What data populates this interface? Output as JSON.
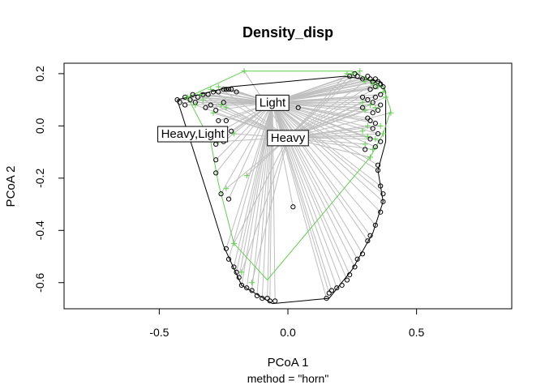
{
  "chart_data": {
    "type": "scatter",
    "title": "Density_disp",
    "xlabel": "PCoA 1",
    "ylabel": "PCoA 2",
    "sub": "method = \"horn\"",
    "xlim": [
      -0.87,
      0.87
    ],
    "ylim": [
      -0.7,
      0.24
    ],
    "xticks": [
      -0.5,
      0.0,
      0.5
    ],
    "yticks": [
      -0.6,
      -0.4,
      -0.2,
      0.0,
      0.2
    ],
    "xtick_labels": [
      "-0.5",
      "0.0",
      "0.5"
    ],
    "ytick_labels": [
      "-0.6",
      "-0.4",
      "-0.2",
      "0.0",
      "0.2"
    ],
    "grid": false,
    "colors": {
      "group_light": "#000000",
      "group_heavy": "#61D04F",
      "segment": "#BEBEBE",
      "hull_light": "#000000",
      "hull_heavy": "#61D04F"
    },
    "centroids": [
      {
        "label": "Light",
        "x": -0.06,
        "y": 0.09
      },
      {
        "label": "Heavy,Light",
        "x": -0.37,
        "y": -0.03
      },
      {
        "label": "Heavy",
        "x": 0.0,
        "y": -0.045
      }
    ],
    "series": [
      {
        "marker": "circle",
        "segment_to": 0,
        "points": [
          [
            -0.43,
            0.1
          ],
          [
            -0.42,
            0.09
          ],
          [
            -0.4,
            0.11
          ],
          [
            -0.38,
            0.1
          ],
          [
            -0.37,
            0.12
          ],
          [
            -0.35,
            0.11
          ],
          [
            -0.33,
            0.12
          ],
          [
            -0.31,
            0.12
          ],
          [
            -0.29,
            0.13
          ],
          [
            -0.27,
            0.13
          ],
          [
            -0.25,
            0.14
          ],
          [
            -0.24,
            0.14
          ],
          [
            -0.23,
            0.14
          ],
          [
            -0.22,
            0.14
          ],
          [
            -0.2,
            0.13
          ],
          [
            -0.4,
            0.08
          ],
          [
            -0.36,
            0.09
          ],
          [
            -0.32,
            0.07
          ],
          [
            -0.3,
            0.08
          ],
          [
            -0.28,
            0.06
          ],
          [
            -0.25,
            0.09
          ],
          [
            -0.27,
            0.02
          ],
          [
            -0.24,
            0.02
          ],
          [
            -0.26,
            -0.02
          ],
          [
            -0.22,
            -0.02
          ],
          [
            -0.28,
            -0.07
          ],
          [
            -0.25,
            -0.06
          ],
          [
            -0.28,
            -0.13
          ],
          [
            -0.28,
            -0.18
          ],
          [
            -0.26,
            -0.26
          ],
          [
            -0.23,
            -0.28
          ],
          [
            0.24,
            0.19
          ],
          [
            0.26,
            0.2
          ],
          [
            0.27,
            0.19
          ],
          [
            0.29,
            0.18
          ],
          [
            0.31,
            0.19
          ],
          [
            0.32,
            0.18
          ],
          [
            0.33,
            0.17
          ],
          [
            0.34,
            0.18
          ],
          [
            0.35,
            0.17
          ],
          [
            0.36,
            0.16
          ],
          [
            0.37,
            0.15
          ],
          [
            0.34,
            0.15
          ],
          [
            0.32,
            0.14
          ],
          [
            0.36,
            0.12
          ],
          [
            0.34,
            0.11
          ],
          [
            0.33,
            0.09
          ],
          [
            0.31,
            0.1
          ],
          [
            0.29,
            0.11
          ],
          [
            0.36,
            0.08
          ],
          [
            0.35,
            0.06
          ],
          [
            0.33,
            0.05
          ],
          [
            0.31,
            0.03
          ],
          [
            0.34,
            0.01
          ],
          [
            0.33,
            -0.01
          ],
          [
            0.35,
            -0.03
          ],
          [
            0.32,
            -0.05
          ],
          [
            0.36,
            -0.06
          ],
          [
            0.34,
            -0.08
          ],
          [
            0.3,
            -0.09
          ],
          [
            0.35,
            -0.15
          ],
          [
            0.29,
            0.07
          ],
          [
            0.32,
            0.02
          ],
          [
            0.04,
            0.07
          ],
          [
            0.02,
            -0.31
          ],
          [
            -0.24,
            -0.47
          ],
          [
            -0.23,
            -0.51
          ],
          [
            -0.21,
            -0.54
          ],
          [
            -0.2,
            -0.56
          ],
          [
            -0.19,
            -0.58
          ],
          [
            -0.18,
            -0.61
          ],
          [
            -0.16,
            -0.62
          ],
          [
            -0.14,
            -0.63
          ],
          [
            -0.12,
            -0.65
          ],
          [
            -0.1,
            -0.66
          ],
          [
            -0.08,
            -0.66
          ],
          [
            -0.07,
            -0.67
          ],
          [
            -0.05,
            -0.67
          ],
          [
            0.15,
            -0.66
          ],
          [
            0.16,
            -0.64
          ],
          [
            0.17,
            -0.63
          ],
          [
            0.19,
            -0.62
          ],
          [
            0.21,
            -0.61
          ],
          [
            0.23,
            -0.59
          ],
          [
            0.24,
            -0.57
          ],
          [
            0.26,
            -0.54
          ],
          [
            0.27,
            -0.51
          ],
          [
            0.29,
            -0.49
          ],
          [
            0.31,
            -0.44
          ],
          [
            0.32,
            -0.42
          ],
          [
            0.34,
            -0.38
          ],
          [
            0.36,
            -0.33
          ],
          [
            0.37,
            -0.29
          ],
          [
            0.37,
            -0.26
          ],
          [
            0.36,
            -0.23
          ],
          [
            0.35,
            -0.17
          ]
        ]
      },
      {
        "marker": "plus",
        "segment_to": 2,
        "points": [
          [
            -0.17,
            0.21
          ],
          [
            -0.27,
            0.15
          ],
          [
            -0.3,
            0.14
          ],
          [
            -0.33,
            0.1
          ],
          [
            -0.34,
            0.12
          ],
          [
            -0.36,
            0.08
          ],
          [
            -0.39,
            0.11
          ],
          [
            -0.26,
            0.08
          ],
          [
            -0.24,
            0.07
          ],
          [
            -0.29,
            0.05
          ],
          [
            -0.27,
            -0.06
          ],
          [
            -0.21,
            -0.03
          ],
          [
            -0.24,
            -0.24
          ],
          [
            -0.16,
            -0.19
          ],
          [
            -0.21,
            -0.45
          ],
          [
            -0.18,
            -0.56
          ],
          [
            -0.14,
            -0.6
          ],
          [
            0.23,
            0.2
          ],
          [
            0.25,
            0.2
          ],
          [
            0.28,
            0.21
          ],
          [
            0.3,
            0.17
          ],
          [
            0.33,
            0.16
          ],
          [
            0.35,
            0.15
          ],
          [
            0.37,
            0.13
          ],
          [
            0.38,
            0.11
          ],
          [
            0.4,
            0.05
          ],
          [
            0.32,
            0.08
          ],
          [
            0.3,
            0.06
          ],
          [
            0.34,
            0.07
          ],
          [
            0.31,
            0.0
          ],
          [
            0.34,
            -0.05
          ],
          [
            0.31,
            -0.04
          ],
          [
            0.29,
            -0.02
          ],
          [
            0.37,
            -0.03
          ],
          [
            0.33,
            -0.09
          ],
          [
            0.32,
            -0.12
          ],
          [
            0.36,
            0.0
          ],
          [
            0.3,
            -0.07
          ],
          [
            0.29,
            0.09
          ]
        ]
      }
    ],
    "hulls": [
      {
        "color_key": "hull_light",
        "points": [
          [
            -0.43,
            0.1
          ],
          [
            -0.22,
            0.15
          ],
          [
            0.22,
            0.19
          ],
          [
            0.36,
            0.17
          ],
          [
            0.38,
            0.13
          ],
          [
            0.38,
            -0.06
          ],
          [
            0.35,
            -0.17
          ],
          [
            0.37,
            -0.29
          ],
          [
            0.33,
            -0.41
          ],
          [
            0.25,
            -0.55
          ],
          [
            0.16,
            -0.66
          ],
          [
            -0.06,
            -0.68
          ],
          [
            -0.18,
            -0.61
          ],
          [
            -0.25,
            -0.46
          ],
          [
            -0.3,
            -0.3
          ],
          [
            -0.43,
            0.1
          ]
        ]
      },
      {
        "color_key": "hull_heavy",
        "points": [
          [
            -0.39,
            0.11
          ],
          [
            -0.17,
            0.21
          ],
          [
            0.25,
            0.21
          ],
          [
            0.37,
            0.15
          ],
          [
            0.4,
            0.06
          ],
          [
            0.37,
            -0.03
          ],
          [
            0.32,
            -0.12
          ],
          [
            -0.08,
            -0.59
          ],
          [
            -0.21,
            -0.45
          ],
          [
            -0.27,
            -0.22
          ],
          [
            -0.3,
            -0.06
          ],
          [
            -0.39,
            0.11
          ]
        ]
      }
    ]
  }
}
